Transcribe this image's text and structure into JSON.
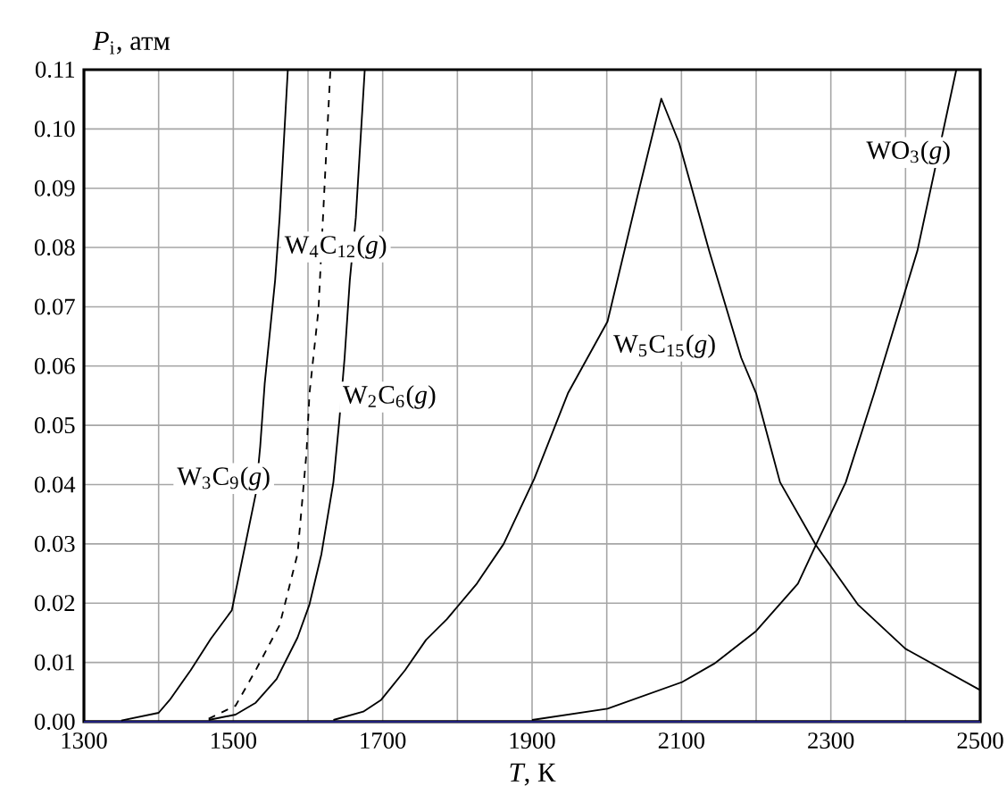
{
  "chart_data": {
    "type": "line",
    "xlabel": "*T*, К",
    "ylabel": "*P*$_{i}$, атм",
    "xlim": [
      1300,
      2500
    ],
    "ylim": [
      0,
      0.11
    ],
    "xticks": [
      1300,
      {
        "value": 1400,
        "label": null
      },
      1500,
      {
        "value": 1600,
        "label": null
      },
      1700,
      {
        "value": 1800,
        "label": null
      },
      1900,
      {
        "value": 2000,
        "label": null
      },
      2100,
      {
        "value": 2200,
        "label": null
      },
      2300,
      {
        "value": 2400,
        "label": null
      },
      2500
    ],
    "yticks": [
      {
        "value": 0,
        "label": "0.00"
      },
      {
        "value": 0.01,
        "label": "0.01"
      },
      {
        "value": 0.02,
        "label": "0.02"
      },
      {
        "value": 0.03,
        "label": "0.03"
      },
      {
        "value": 0.04,
        "label": "0.04"
      },
      {
        "value": 0.05,
        "label": "0.05"
      },
      {
        "value": 0.06,
        "label": "0.06"
      },
      {
        "value": 0.07,
        "label": "0.07"
      },
      {
        "value": 0.08,
        "label": "0.08"
      },
      {
        "value": 0.09,
        "label": "0.09"
      },
      {
        "value": 0.1,
        "label": "0.10"
      },
      {
        "value": 0.11,
        "label": "0.11"
      }
    ],
    "grid": true,
    "marker": "none",
    "series": [
      {
        "color": "#1f1f7a",
        "line_style": "solid",
        "x": [
          1300,
          2500
        ],
        "values": [
          0,
          0
        ]
      },
      {
        "color": "#000000",
        "line_style": "solid",
        "x": [
          1350,
          1400,
          1415,
          1443,
          1470,
          1498,
          1530,
          1536,
          1542,
          1556,
          1562,
          1573
        ],
        "values": [
          0.0002,
          0.0015,
          0.0037,
          0.0087,
          0.014,
          0.0188,
          0.0384,
          0.0464,
          0.057,
          0.0745,
          0.085,
          0.11
        ]
      },
      {
        "color": "#000000",
        "line_style": "dashed",
        "x": [
          1467,
          1503,
          1530,
          1562,
          1586,
          1598,
          1602,
          1614,
          1622,
          1630
        ],
        "values": [
          0.0005,
          0.0027,
          0.0087,
          0.0163,
          0.0283,
          0.0454,
          0.0554,
          0.0695,
          0.09,
          0.11
        ]
      },
      {
        "color": "#000000",
        "line_style": "solid",
        "x": [
          1467,
          1503,
          1530,
          1558,
          1586,
          1602,
          1618,
          1634,
          1642,
          1649,
          1656,
          1664,
          1676
        ],
        "values": [
          0.0003,
          0.0012,
          0.0032,
          0.0072,
          0.0142,
          0.0198,
          0.0283,
          0.0404,
          0.0509,
          0.0614,
          0.0745,
          0.085,
          0.11
        ]
      },
      {
        "color": "#000000",
        "line_style": "solid",
        "x": [
          1634,
          1674,
          1698,
          1730,
          1758,
          1786,
          1826,
          1862,
          1903,
          1948,
          2001,
          2041,
          2073,
          2097,
          2137,
          2180,
          2200,
          2232,
          2280,
          2336,
          2400,
          2499
        ],
        "values": [
          0.0003,
          0.0017,
          0.0037,
          0.0087,
          0.0138,
          0.0173,
          0.0233,
          0.03,
          0.041,
          0.0554,
          0.0675,
          0.0886,
          0.1051,
          0.0976,
          0.0795,
          0.0614,
          0.0554,
          0.0404,
          0.0298,
          0.0198,
          0.0123,
          0.0054
        ]
      },
      {
        "color": "#000000",
        "line_style": "solid",
        "x": [
          1900,
          2001,
          2101,
          2144,
          2200,
          2256,
          2280,
          2320,
          2358,
          2416,
          2468
        ],
        "values": [
          0.0003,
          0.0022,
          0.0067,
          0.0098,
          0.0153,
          0.0233,
          0.0298,
          0.0404,
          0.0554,
          0.0795,
          0.11
        ]
      }
    ],
    "annotations": [
      "W$_{3}$C$_{9}$(*g*)",
      "W$_{4}$C$_{12}$(*g*)",
      "W$_{2}$C$_{6}$(*g*)",
      "W$_{5}$C$_{15}$(*g*)",
      "WO$_{3}$(*g*)"
    ]
  }
}
